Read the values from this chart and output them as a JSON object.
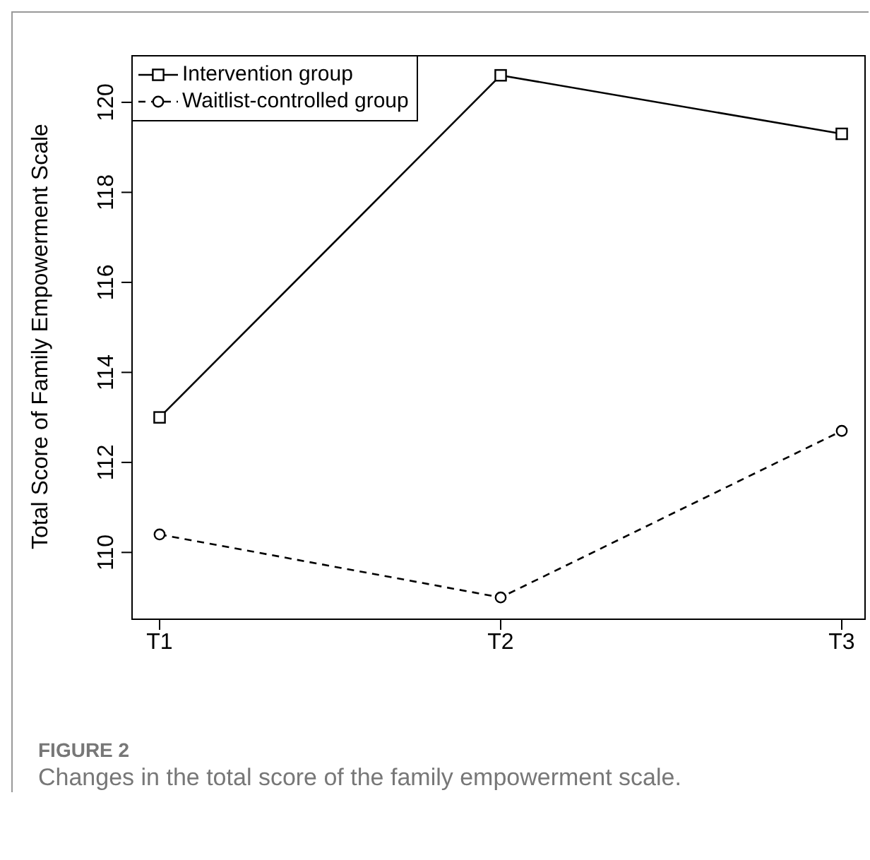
{
  "chart_data": {
    "type": "line",
    "ylabel": "Total Score of Family Empowerment Scale",
    "categories": [
      "T1",
      "T2",
      "T3"
    ],
    "series": [
      {
        "name": "Intervention group",
        "color": "#000000",
        "values": [
          113.0,
          120.6,
          119.3
        ],
        "marker": "square",
        "line_style": "solid"
      },
      {
        "name": "Waitlist-controlled group",
        "color": "#000000",
        "values": [
          110.4,
          109.0,
          112.7
        ],
        "marker": "circle",
        "line_style": "dashed"
      }
    ],
    "ylim": [
      108.5,
      121.05
    ],
    "yticks": [
      110,
      112,
      114,
      116,
      118,
      120
    ],
    "grid": false,
    "legend": "top left",
    "annotations": [
      "FIGURE 2",
      "Changes in the total score of the family empowerment scale."
    ]
  }
}
